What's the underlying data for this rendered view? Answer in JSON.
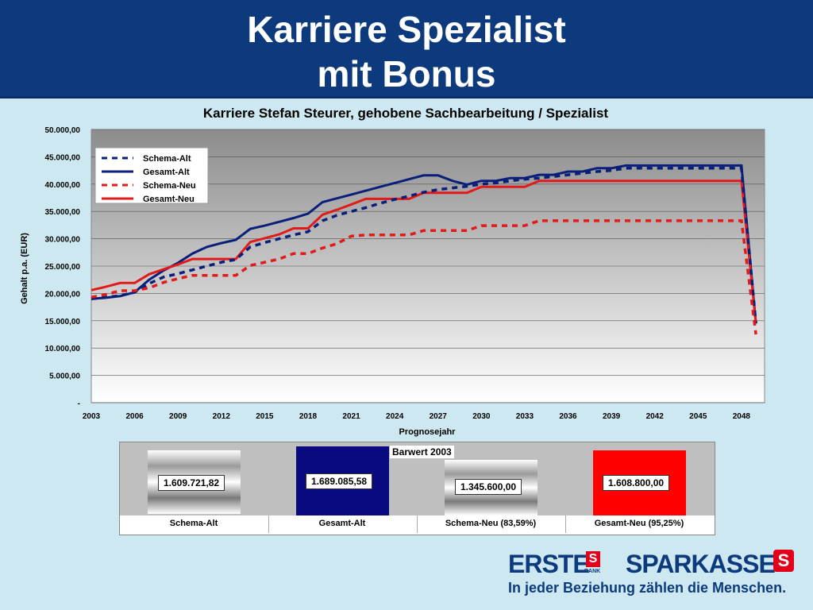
{
  "slide": {
    "title_line1": "Karriere Spezialist",
    "title_line2": "mit Bonus"
  },
  "chart_data": {
    "type": "line",
    "title": "Karriere Stefan Steurer, gehobene Sachbearbeitung / Spezialist",
    "xlabel": "Prognosejahr",
    "ylabel": "Gehalt p.a. (EUR)",
    "xlim": [
      2003,
      2049
    ],
    "ylim": [
      0,
      50000
    ],
    "x_ticks": [
      "2003",
      "2006",
      "2009",
      "2012",
      "2015",
      "2018",
      "2021",
      "2024",
      "2027",
      "2030",
      "2033",
      "2036",
      "2039",
      "2042",
      "2045",
      "2048"
    ],
    "y_ticks": [
      "-",
      "5.000,00",
      "10.000,00",
      "15.000,00",
      "20.000,00",
      "25.000,00",
      "30.000,00",
      "35.000,00",
      "40.000,00",
      "45.000,00",
      "50.000,00"
    ],
    "grid": true,
    "legend_placement": "top-left",
    "series": [
      {
        "name": "Schema-Alt",
        "color": "#0a1f7a",
        "style": "dashed",
        "points": [
          [
            2003,
            19000
          ],
          [
            2004,
            19300
          ],
          [
            2005,
            19600
          ],
          [
            2006,
            20200
          ],
          [
            2007,
            21800
          ],
          [
            2008,
            23000
          ],
          [
            2009,
            23600
          ],
          [
            2010,
            24300
          ],
          [
            2011,
            25000
          ],
          [
            2012,
            25700
          ],
          [
            2013,
            26200
          ],
          [
            2014,
            28500
          ],
          [
            2015,
            29300
          ],
          [
            2016,
            30000
          ],
          [
            2017,
            30700
          ],
          [
            2018,
            31300
          ],
          [
            2019,
            33300
          ],
          [
            2020,
            34300
          ],
          [
            2021,
            35000
          ],
          [
            2022,
            35700
          ],
          [
            2023,
            36500
          ],
          [
            2024,
            37200
          ],
          [
            2025,
            37800
          ],
          [
            2026,
            38500
          ],
          [
            2027,
            39000
          ],
          [
            2028,
            39300
          ],
          [
            2029,
            39600
          ],
          [
            2030,
            40000
          ],
          [
            2031,
            40200
          ],
          [
            2032,
            40600
          ],
          [
            2033,
            40900
          ],
          [
            2034,
            41100
          ],
          [
            2035,
            41400
          ],
          [
            2036,
            41700
          ],
          [
            2037,
            42000
          ],
          [
            2038,
            42300
          ],
          [
            2039,
            42500
          ],
          [
            2040,
            42900
          ],
          [
            2041,
            42900
          ],
          [
            2042,
            42900
          ],
          [
            2043,
            42900
          ],
          [
            2044,
            42900
          ],
          [
            2045,
            42900
          ],
          [
            2046,
            42900
          ],
          [
            2047,
            42900
          ],
          [
            2048,
            42900
          ],
          [
            2049,
            14500
          ]
        ]
      },
      {
        "name": "Gesamt-Alt",
        "color": "#0a1f7a",
        "style": "solid",
        "points": [
          [
            2003,
            19000
          ],
          [
            2004,
            19200
          ],
          [
            2005,
            19500
          ],
          [
            2006,
            20200
          ],
          [
            2007,
            22500
          ],
          [
            2008,
            24200
          ],
          [
            2009,
            25600
          ],
          [
            2010,
            27300
          ],
          [
            2011,
            28500
          ],
          [
            2012,
            29200
          ],
          [
            2013,
            29800
          ],
          [
            2014,
            31800
          ],
          [
            2015,
            32400
          ],
          [
            2016,
            33100
          ],
          [
            2017,
            33800
          ],
          [
            2018,
            34600
          ],
          [
            2019,
            36700
          ],
          [
            2020,
            37400
          ],
          [
            2021,
            38100
          ],
          [
            2022,
            38800
          ],
          [
            2023,
            39500
          ],
          [
            2024,
            40200
          ],
          [
            2025,
            40900
          ],
          [
            2026,
            41600
          ],
          [
            2027,
            41600
          ],
          [
            2028,
            40600
          ],
          [
            2029,
            39900
          ],
          [
            2030,
            40600
          ],
          [
            2031,
            40600
          ],
          [
            2032,
            41100
          ],
          [
            2033,
            41100
          ],
          [
            2034,
            41700
          ],
          [
            2035,
            41700
          ],
          [
            2036,
            42300
          ],
          [
            2037,
            42300
          ],
          [
            2038,
            42900
          ],
          [
            2039,
            42900
          ],
          [
            2040,
            43400
          ],
          [
            2041,
            43400
          ],
          [
            2042,
            43400
          ],
          [
            2043,
            43400
          ],
          [
            2044,
            43400
          ],
          [
            2045,
            43400
          ],
          [
            2046,
            43400
          ],
          [
            2047,
            43400
          ],
          [
            2048,
            43400
          ],
          [
            2049,
            14500
          ]
        ]
      },
      {
        "name": "Schema-Neu",
        "color": "#e21a1a",
        "style": "dashed",
        "points": [
          [
            2003,
            19300
          ],
          [
            2004,
            19800
          ],
          [
            2005,
            20500
          ],
          [
            2006,
            20500
          ],
          [
            2007,
            21000
          ],
          [
            2008,
            22000
          ],
          [
            2009,
            22700
          ],
          [
            2010,
            23300
          ],
          [
            2011,
            23300
          ],
          [
            2012,
            23300
          ],
          [
            2013,
            23300
          ],
          [
            2014,
            25100
          ],
          [
            2015,
            25700
          ],
          [
            2016,
            26300
          ],
          [
            2017,
            27300
          ],
          [
            2018,
            27300
          ],
          [
            2019,
            28300
          ],
          [
            2020,
            29100
          ],
          [
            2021,
            30500
          ],
          [
            2022,
            30700
          ],
          [
            2023,
            30700
          ],
          [
            2024,
            30700
          ],
          [
            2025,
            30700
          ],
          [
            2026,
            31500
          ],
          [
            2027,
            31500
          ],
          [
            2028,
            31500
          ],
          [
            2029,
            31500
          ],
          [
            2030,
            32400
          ],
          [
            2031,
            32400
          ],
          [
            2032,
            32400
          ],
          [
            2033,
            32400
          ],
          [
            2034,
            33300
          ],
          [
            2035,
            33300
          ],
          [
            2036,
            33300
          ],
          [
            2037,
            33300
          ],
          [
            2038,
            33300
          ],
          [
            2039,
            33300
          ],
          [
            2040,
            33300
          ],
          [
            2041,
            33300
          ],
          [
            2042,
            33300
          ],
          [
            2043,
            33300
          ],
          [
            2044,
            33300
          ],
          [
            2045,
            33300
          ],
          [
            2046,
            33300
          ],
          [
            2047,
            33300
          ],
          [
            2048,
            33300
          ],
          [
            2049,
            12500
          ]
        ]
      },
      {
        "name": "Gesamt-Neu",
        "color": "#e21a1a",
        "style": "solid",
        "points": [
          [
            2003,
            20600
          ],
          [
            2004,
            21200
          ],
          [
            2005,
            21900
          ],
          [
            2006,
            21900
          ],
          [
            2007,
            23500
          ],
          [
            2008,
            24400
          ],
          [
            2009,
            25300
          ],
          [
            2010,
            26300
          ],
          [
            2011,
            26300
          ],
          [
            2012,
            26300
          ],
          [
            2013,
            26300
          ],
          [
            2014,
            29400
          ],
          [
            2015,
            30100
          ],
          [
            2016,
            30800
          ],
          [
            2017,
            31900
          ],
          [
            2018,
            31900
          ],
          [
            2019,
            34400
          ],
          [
            2020,
            35300
          ],
          [
            2021,
            36300
          ],
          [
            2022,
            37300
          ],
          [
            2023,
            37300
          ],
          [
            2024,
            37300
          ],
          [
            2025,
            37300
          ],
          [
            2026,
            38400
          ],
          [
            2027,
            38400
          ],
          [
            2028,
            38400
          ],
          [
            2029,
            38400
          ],
          [
            2030,
            39500
          ],
          [
            2031,
            39500
          ],
          [
            2032,
            39500
          ],
          [
            2033,
            39500
          ],
          [
            2034,
            40600
          ],
          [
            2035,
            40600
          ],
          [
            2036,
            40600
          ],
          [
            2037,
            40600
          ],
          [
            2038,
            40600
          ],
          [
            2039,
            40600
          ],
          [
            2040,
            40600
          ],
          [
            2041,
            40600
          ],
          [
            2042,
            40600
          ],
          [
            2043,
            40600
          ],
          [
            2044,
            40600
          ],
          [
            2045,
            40600
          ],
          [
            2046,
            40600
          ],
          [
            2047,
            40600
          ],
          [
            2048,
            40600
          ],
          [
            2049,
            14500
          ]
        ]
      }
    ]
  },
  "barwert": {
    "title": "Barwert 2003",
    "items": [
      {
        "category": "Schema-Alt",
        "value_label": "1.609.721,82",
        "value": 1609721.82,
        "fill": "gradient-gray"
      },
      {
        "category": "Gesamt-Alt",
        "value_label": "1.689.085,58",
        "value": 1689085.58,
        "fill": "#0a0a80"
      },
      {
        "category": "Schema-Neu (83,59%)",
        "value_label": "1.345.600,00",
        "value": 1345600.0,
        "fill": "gradient-gray"
      },
      {
        "category": "Gesamt-Neu (95,25%)",
        "value_label": "1.608.800,00",
        "value": 1608800.0,
        "fill": "#ff0000"
      }
    ]
  },
  "brand": {
    "erste": "ERSTE",
    "bank": "BANK",
    "sparkasse": "SPARKASSE",
    "slogan": "In jeder Beziehung zählen die Menschen."
  }
}
